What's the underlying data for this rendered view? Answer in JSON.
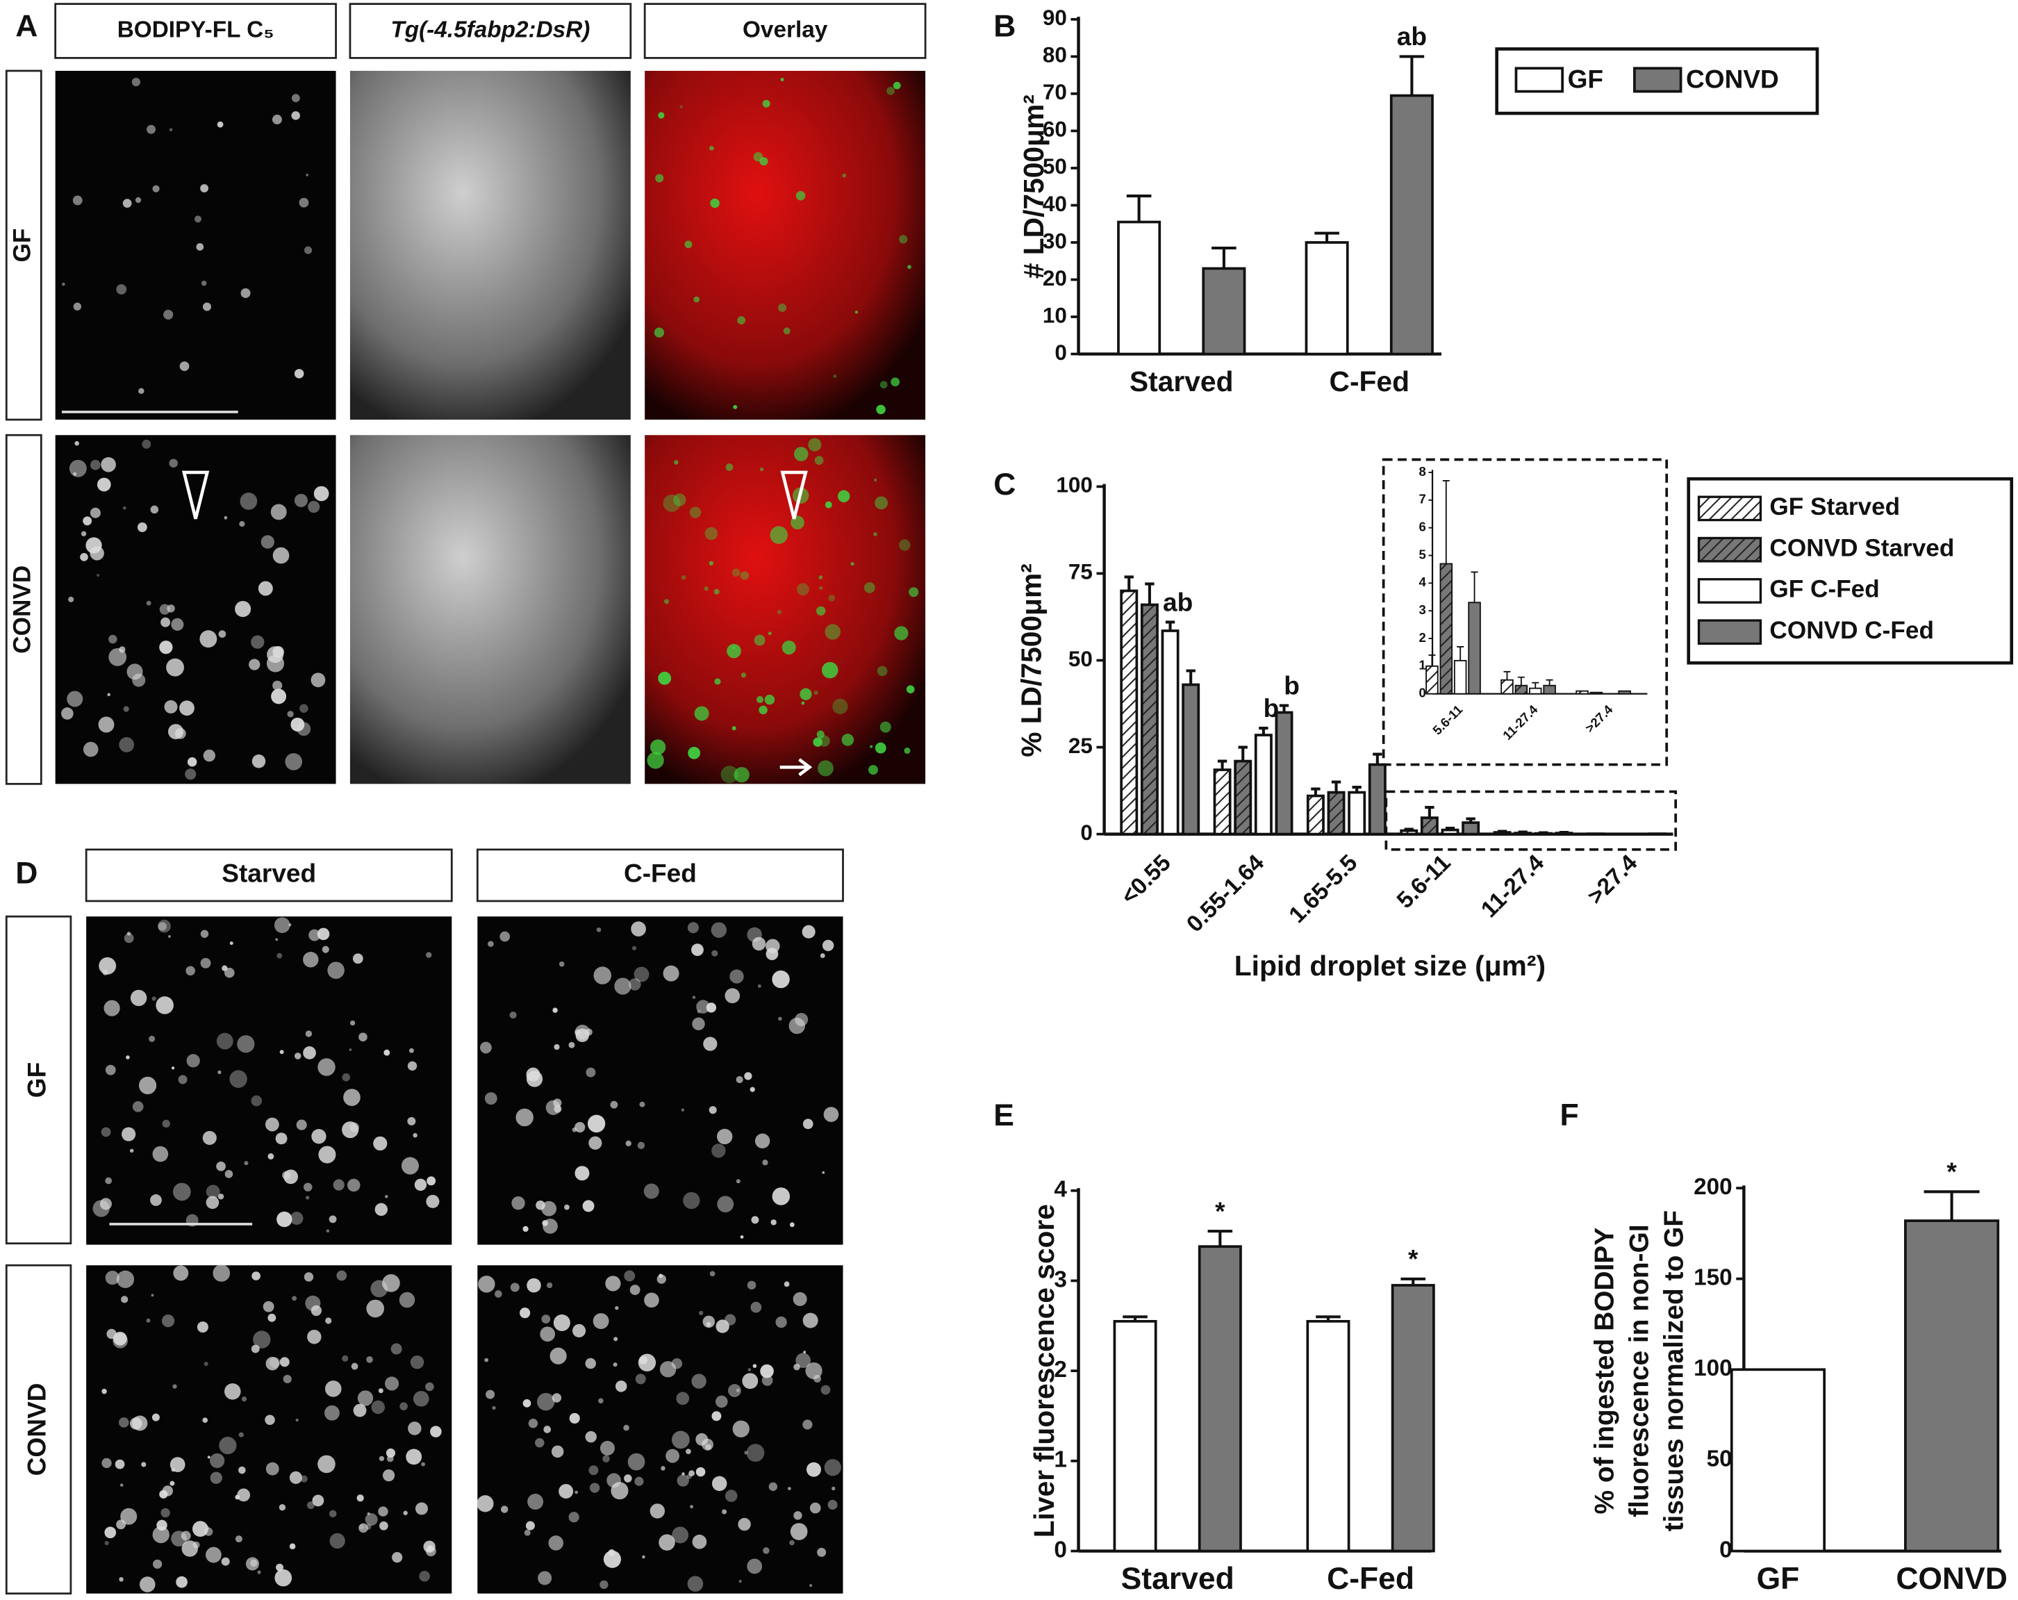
{
  "image_panels": [
    {
      "label": "A",
      "columns": [
        "BODIPY-FL C₅",
        "Tg(-4.5fabp2:DsR)",
        "Overlay"
      ],
      "rows": [
        "GF",
        "CONVD"
      ]
    },
    {
      "label": "D",
      "columns": [
        "Starved",
        "C-Fed"
      ],
      "rows": [
        "GF",
        "CONVD"
      ]
    }
  ],
  "chart_data": [
    {
      "type": "bar",
      "panel": "B",
      "ylabel": "# LD/7500μm²",
      "categories": [
        "Starved",
        "C-Fed"
      ],
      "series": [
        {
          "name": "GF",
          "color": "#ffffff",
          "values": [
            35.5,
            30
          ],
          "errors": [
            7,
            2.5
          ],
          "annotations": [
            null,
            null
          ]
        },
        {
          "name": "CONVD",
          "color": "#777777",
          "values": [
            23,
            69.5
          ],
          "errors": [
            5.5,
            10.5
          ],
          "annotations": [
            null,
            "ab"
          ]
        }
      ],
      "ylim": [
        0,
        90
      ],
      "yticks": [
        0,
        10,
        20,
        30,
        40,
        50,
        60,
        70,
        80,
        90
      ],
      "legend": "top-right"
    },
    {
      "type": "bar",
      "panel": "C",
      "ylabel": "% LD/7500μm²",
      "xlabel": "Lipid droplet size (μm²)",
      "categories": [
        "<0.55",
        "0.55-1.64",
        "1.65-5.5",
        "5.6-11",
        "11-27.4",
        ">27.4"
      ],
      "series": [
        {
          "name": "GF Starved",
          "color": "#ffffff",
          "hatch": true,
          "values": [
            70,
            18.5,
            11,
            1,
            0.5,
            0.1
          ],
          "errors": [
            4,
            2.5,
            2,
            0.4,
            0.3,
            0
          ],
          "annotations": [
            null,
            null,
            null,
            null,
            null,
            null
          ]
        },
        {
          "name": "CONVD Starved",
          "color": "#777777",
          "hatch": true,
          "values": [
            66,
            21,
            12,
            4.7,
            0.3,
            0.05
          ],
          "errors": [
            6,
            4,
            3,
            3,
            0.3,
            0
          ],
          "annotations": [
            null,
            null,
            null,
            null,
            null,
            null
          ]
        },
        {
          "name": "GF C-Fed",
          "color": "#ffffff",
          "hatch": false,
          "values": [
            58.5,
            28.5,
            12,
            1.2,
            0.2,
            0
          ],
          "errors": [
            2.5,
            2,
            1.5,
            0.5,
            0.2,
            0
          ],
          "annotations": [
            "ab",
            "b",
            null,
            null,
            null,
            null
          ]
        },
        {
          "name": "CONVD C-Fed",
          "color": "#777777",
          "hatch": false,
          "values": [
            43,
            35,
            20,
            3.3,
            0.3,
            0.1
          ],
          "errors": [
            4,
            2,
            3,
            1.1,
            0.2,
            0
          ],
          "annotations": [
            null,
            "b",
            null,
            null,
            null,
            null
          ]
        }
      ],
      "ylim": [
        0,
        100
      ],
      "yticks": [
        0,
        25,
        50,
        75,
        100
      ],
      "legend": "right"
    },
    {
      "type": "bar",
      "categories": [
        "5.6-11",
        "11-27.4",
        ">27.4"
      ],
      "series": [
        {
          "color": "#ffffff",
          "hatch": true,
          "values": [
            1,
            0.5,
            0.1
          ],
          "errors": [
            0.4,
            0.3,
            0
          ]
        },
        {
          "color": "#777777",
          "hatch": true,
          "values": [
            4.7,
            0.3,
            0.05
          ],
          "errors": [
            3,
            0.3,
            0
          ]
        },
        {
          "color": "#ffffff",
          "hatch": false,
          "values": [
            1.2,
            0.2,
            0
          ],
          "errors": [
            0.5,
            0.2,
            0
          ]
        },
        {
          "color": "#777777",
          "hatch": false,
          "values": [
            3.3,
            0.3,
            0.1
          ],
          "errors": [
            1.1,
            0.2,
            0
          ]
        }
      ],
      "ylim": [
        0,
        8
      ],
      "yticks": [
        0,
        1,
        2,
        3,
        4,
        5,
        6,
        7,
        8
      ]
    },
    {
      "type": "bar",
      "panel": "E",
      "ylabel": "Liver fluorescence score",
      "categories": [
        "Starved",
        "C-Fed"
      ],
      "series": [
        {
          "color": "#ffffff",
          "values": [
            2.55,
            2.55
          ],
          "errors": [
            0.05,
            0.05
          ],
          "annotations": [
            null,
            null
          ]
        },
        {
          "color": "#777777",
          "values": [
            3.38,
            2.95
          ],
          "errors": [
            0.17,
            0.07
          ],
          "annotations": [
            "*",
            "*"
          ]
        }
      ],
      "ylim": [
        0,
        4
      ],
      "yticks": [
        0,
        1,
        2,
        3,
        4
      ]
    },
    {
      "type": "bar",
      "panel": "F",
      "ylabel": [
        "% of ingested BODIPY",
        "fluorescence in non-GI",
        "tissues normalized to GF"
      ],
      "categories": [
        "GF",
        "CONVD"
      ],
      "series": [
        {
          "colors": [
            "#ffffff",
            "#777777"
          ],
          "values": [
            100,
            182
          ],
          "errors": [
            0,
            16
          ],
          "annotations": [
            null,
            "*"
          ]
        }
      ],
      "ylim": [
        0,
        200
      ],
      "yticks": [
        0,
        50,
        100,
        150,
        200
      ]
    }
  ]
}
